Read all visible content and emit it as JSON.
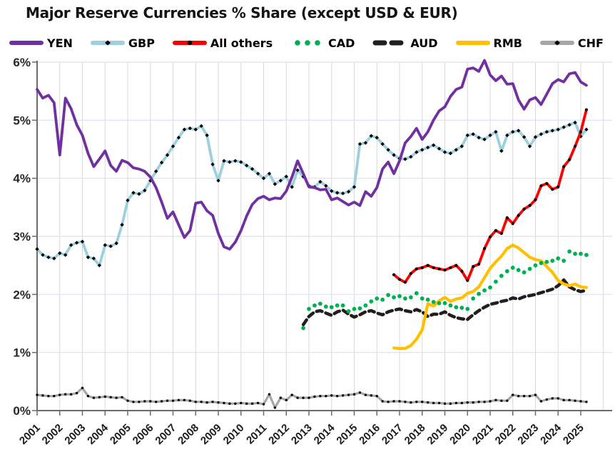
{
  "title": "Major Reserve Currencies % Share (except USD & EUR)",
  "legend": [
    {
      "label": "YEN"
    },
    {
      "label": "GBP"
    },
    {
      "label": "All others"
    },
    {
      "label": "CAD"
    },
    {
      "label": "AUD"
    },
    {
      "label": "RMB"
    },
    {
      "label": "CHF"
    }
  ],
  "axes": {
    "y_tick_labels": [
      "0%",
      "1%",
      "2%",
      "3%",
      "4%",
      "5%",
      "6%"
    ],
    "x_tick_labels": [
      "2001",
      "2002",
      "2003",
      "2004",
      "2005",
      "2006",
      "2007",
      "2008",
      "2009",
      "2010",
      "2011",
      "2012",
      "2013",
      "2014",
      "2015",
      "2016",
      "2017",
      "2018",
      "2019",
      "2020",
      "2021",
      "2022",
      "2023",
      "2024",
      "2025"
    ]
  },
  "colors": {
    "yen": "#7030A0",
    "gbp": "#9DD0DF",
    "all_others": "#FE0000",
    "cad": "#00B050",
    "aud": "#221E1B",
    "rmb": "#FFC000",
    "chf": "#A6A6A6",
    "marker": "#000000",
    "grid_h": "#D9E1F2",
    "grid_v": "#D9D9D9",
    "axis": "#6B6B6B"
  },
  "chart_data": {
    "type": "line",
    "frequency": "quarterly",
    "x_start": "2001Q1",
    "x_end": "2025Q2",
    "ylim": [
      0,
      6
    ],
    "grid": true,
    "legend_position": "top",
    "series": [
      {
        "name": "YEN",
        "color": "#7030A0",
        "line": "solid",
        "marker": "none",
        "width": 3.8,
        "start": "2001Q1",
        "values": [
          5.53,
          5.38,
          5.43,
          5.3,
          4.4,
          5.38,
          5.2,
          4.92,
          4.74,
          4.43,
          4.2,
          4.33,
          4.47,
          4.22,
          4.12,
          4.31,
          4.27,
          4.18,
          4.16,
          4.12,
          4.02,
          3.84,
          3.59,
          3.31,
          3.42,
          3.2,
          2.98,
          3.1,
          3.57,
          3.59,
          3.44,
          3.36,
          3.05,
          2.82,
          2.78,
          2.9,
          3.1,
          3.35,
          3.55,
          3.65,
          3.69,
          3.63,
          3.66,
          3.65,
          3.78,
          4.02,
          4.3,
          4.08,
          3.85,
          3.84,
          3.8,
          3.81,
          3.63,
          3.66,
          3.6,
          3.54,
          3.59,
          3.53,
          3.77,
          3.69,
          3.84,
          4.16,
          4.28,
          4.08,
          4.3,
          4.61,
          4.72,
          4.86,
          4.67,
          4.8,
          5.0,
          5.16,
          5.23,
          5.41,
          5.53,
          5.57,
          5.88,
          5.9,
          5.84,
          6.03,
          5.78,
          5.68,
          5.76,
          5.62,
          5.63,
          5.35,
          5.19,
          5.35,
          5.39,
          5.27,
          5.45,
          5.63,
          5.7,
          5.66,
          5.8,
          5.82,
          5.66,
          5.6
        ]
      },
      {
        "name": "GBP",
        "color": "#9DD0DF",
        "line": "solid",
        "marker": "diamond",
        "width": 3.8,
        "start": "2001Q1",
        "values": [
          2.78,
          2.68,
          2.64,
          2.62,
          2.71,
          2.68,
          2.85,
          2.89,
          2.91,
          2.64,
          2.62,
          2.5,
          2.85,
          2.83,
          2.88,
          3.2,
          3.62,
          3.75,
          3.73,
          3.79,
          3.96,
          4.12,
          4.27,
          4.4,
          4.55,
          4.7,
          4.84,
          4.86,
          4.84,
          4.9,
          4.74,
          4.24,
          3.96,
          4.3,
          4.28,
          4.3,
          4.28,
          4.22,
          4.16,
          4.08,
          4.0,
          4.08,
          3.9,
          3.96,
          4.03,
          3.85,
          4.14,
          4.03,
          3.87,
          3.85,
          3.94,
          3.87,
          3.78,
          3.75,
          3.74,
          3.77,
          3.85,
          4.59,
          4.61,
          4.73,
          4.7,
          4.59,
          4.49,
          4.4,
          4.34,
          4.33,
          4.37,
          4.45,
          4.49,
          4.53,
          4.57,
          4.51,
          4.45,
          4.43,
          4.49,
          4.55,
          4.74,
          4.76,
          4.7,
          4.67,
          4.74,
          4.8,
          4.47,
          4.74,
          4.8,
          4.82,
          4.71,
          4.55,
          4.71,
          4.76,
          4.8,
          4.82,
          4.84,
          4.88,
          4.92,
          4.96,
          4.72,
          4.84
        ]
      },
      {
        "name": "All others",
        "color": "#FE0000",
        "line": "solid",
        "marker": "dot",
        "width": 3.8,
        "start": "2016Q4",
        "values": [
          2.34,
          2.26,
          2.21,
          2.36,
          2.44,
          2.46,
          2.5,
          2.46,
          2.44,
          2.42,
          2.46,
          2.5,
          2.4,
          2.24,
          2.48,
          2.52,
          2.79,
          2.99,
          3.1,
          3.05,
          3.32,
          3.22,
          3.36,
          3.47,
          3.53,
          3.63,
          3.87,
          3.91,
          3.81,
          3.85,
          4.2,
          4.32,
          4.55,
          4.8,
          5.18
        ]
      },
      {
        "name": "CAD",
        "color": "#00B050",
        "line": "none",
        "marker": "disc",
        "width": 0,
        "start": "2012Q4",
        "values": [
          1.42,
          1.75,
          1.81,
          1.84,
          1.79,
          1.78,
          1.81,
          1.81,
          1.71,
          1.75,
          1.76,
          1.81,
          1.88,
          1.93,
          1.91,
          1.99,
          1.95,
          1.97,
          1.93,
          1.95,
          2.02,
          1.93,
          1.91,
          1.87,
          1.85,
          1.85,
          1.81,
          1.78,
          1.77,
          1.75,
          1.93,
          2.01,
          2.07,
          2.12,
          2.22,
          2.32,
          2.4,
          2.46,
          2.42,
          2.38,
          2.44,
          2.5,
          2.54,
          2.56,
          2.58,
          2.62,
          2.58,
          2.74,
          2.7,
          2.7,
          2.68
        ]
      },
      {
        "name": "AUD",
        "color": "#221E1B",
        "line": "dashed",
        "marker": "none",
        "width": 4.5,
        "start": "2012Q4",
        "values": [
          1.48,
          1.62,
          1.7,
          1.72,
          1.68,
          1.64,
          1.7,
          1.73,
          1.66,
          1.61,
          1.65,
          1.7,
          1.72,
          1.68,
          1.65,
          1.7,
          1.73,
          1.75,
          1.72,
          1.7,
          1.74,
          1.7,
          1.62,
          1.66,
          1.66,
          1.7,
          1.64,
          1.6,
          1.58,
          1.57,
          1.65,
          1.72,
          1.78,
          1.83,
          1.85,
          1.88,
          1.9,
          1.94,
          1.92,
          1.96,
          1.98,
          2.0,
          2.03,
          2.06,
          2.09,
          2.15,
          2.25,
          2.13,
          2.08,
          2.05,
          2.07
        ]
      },
      {
        "name": "RMB",
        "color": "#FFC000",
        "line": "solid",
        "marker": "none",
        "width": 4.2,
        "start": "2016Q4",
        "values": [
          1.08,
          1.07,
          1.07,
          1.12,
          1.23,
          1.39,
          1.84,
          1.8,
          1.89,
          1.95,
          1.88,
          1.92,
          1.94,
          2.02,
          2.05,
          2.13,
          2.29,
          2.45,
          2.56,
          2.66,
          2.79,
          2.85,
          2.8,
          2.72,
          2.64,
          2.6,
          2.58,
          2.48,
          2.38,
          2.24,
          2.18,
          2.15,
          2.18,
          2.13,
          2.12
        ]
      },
      {
        "name": "CHF",
        "color": "#A6A6A6",
        "line": "solid",
        "marker": "dot-small",
        "width": 3.2,
        "start": "2001Q1",
        "values": [
          0.27,
          0.26,
          0.25,
          0.25,
          0.27,
          0.28,
          0.28,
          0.3,
          0.39,
          0.25,
          0.22,
          0.23,
          0.24,
          0.23,
          0.22,
          0.23,
          0.17,
          0.15,
          0.15,
          0.16,
          0.16,
          0.15,
          0.16,
          0.17,
          0.17,
          0.18,
          0.18,
          0.17,
          0.15,
          0.15,
          0.14,
          0.15,
          0.14,
          0.13,
          0.12,
          0.12,
          0.13,
          0.12,
          0.12,
          0.13,
          0.11,
          0.28,
          0.05,
          0.22,
          0.18,
          0.27,
          0.22,
          0.22,
          0.22,
          0.24,
          0.25,
          0.25,
          0.26,
          0.25,
          0.26,
          0.27,
          0.28,
          0.31,
          0.27,
          0.26,
          0.25,
          0.16,
          0.15,
          0.16,
          0.16,
          0.15,
          0.14,
          0.15,
          0.15,
          0.14,
          0.13,
          0.13,
          0.12,
          0.12,
          0.13,
          0.13,
          0.14,
          0.14,
          0.15,
          0.15,
          0.16,
          0.18,
          0.17,
          0.17,
          0.27,
          0.25,
          0.25,
          0.25,
          0.27,
          0.16,
          0.19,
          0.21,
          0.21,
          0.18,
          0.18,
          0.17,
          0.16,
          0.15
        ]
      }
    ]
  }
}
